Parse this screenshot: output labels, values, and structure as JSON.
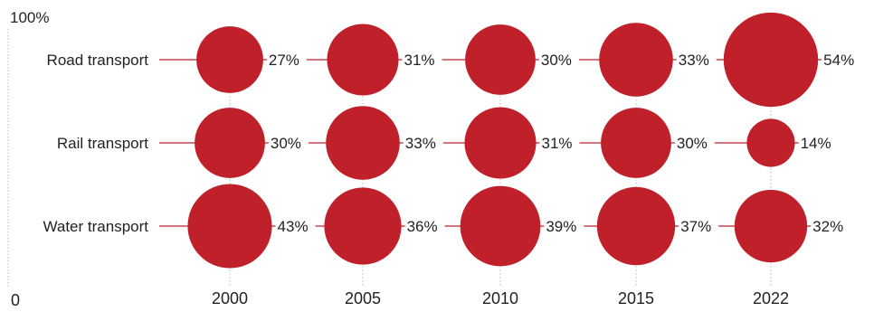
{
  "chart_data": {
    "type": "bubble",
    "title": "",
    "xlabel": "",
    "ylabel": "",
    "y_axis_labels": {
      "top": "100%",
      "bottom": "0"
    },
    "years": [
      "2000",
      "2005",
      "2010",
      "2015",
      "2022"
    ],
    "series": [
      {
        "name": "Road transport",
        "values": [
          27,
          31,
          30,
          33,
          54
        ]
      },
      {
        "name": "Rail transport",
        "values": [
          30,
          33,
          31,
          30,
          14
        ]
      },
      {
        "name": "Water transport",
        "values": [
          43,
          36,
          39,
          37,
          32
        ]
      }
    ],
    "value_suffix": "%",
    "bubble_area_proportional_to_value": true,
    "grid": false,
    "legend": "none"
  },
  "colors": {
    "bubble": "#c0202a",
    "connector": "#c0202a",
    "text": "#222222",
    "axis": "#bbbbbb",
    "year_guide": "#bbbbbb"
  }
}
